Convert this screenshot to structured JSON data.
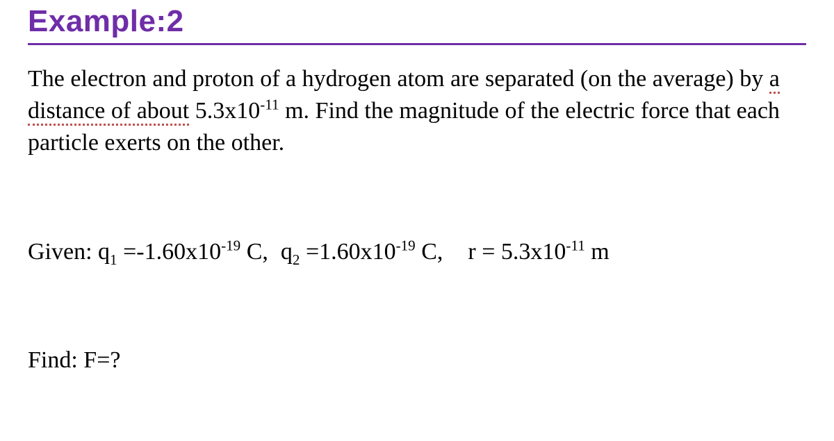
{
  "colors": {
    "title": "#6f2da8",
    "rule": "#6f2da8",
    "body_text": "#000000",
    "dotted_underline": "#c0504d",
    "background": "#ffffff"
  },
  "typography": {
    "title_font": "Arial",
    "title_weight": "bold",
    "title_size_pt": 33,
    "body_font": "Times New Roman",
    "body_size_pt": 26
  },
  "title": "Example:2",
  "problem": {
    "pre_text": "The electron and proton of a hydrogen atom are separated (on the average) by ",
    "dotted_text": "a distance of about",
    "mid_text_1": " 5.3x10",
    "exp_1": "-11",
    "post_text": " m. Find the magnitude of the electric force that each particle exerts on the other."
  },
  "given": {
    "label": "Given: ",
    "q1_sym": "q",
    "q1_sub": "1",
    "q1_eq": " =-1.60x10",
    "q1_exp": "-19",
    "q1_unit": " C,",
    "q2_sym": "q",
    "q2_sub": "2",
    "q2_eq": " =1.60x10",
    "q2_exp": "-19",
    "q2_unit": " C,",
    "r_label": "r = 5.3x10",
    "r_exp": "-11",
    "r_unit": " m"
  },
  "find": {
    "text": "Find:  F=?"
  }
}
